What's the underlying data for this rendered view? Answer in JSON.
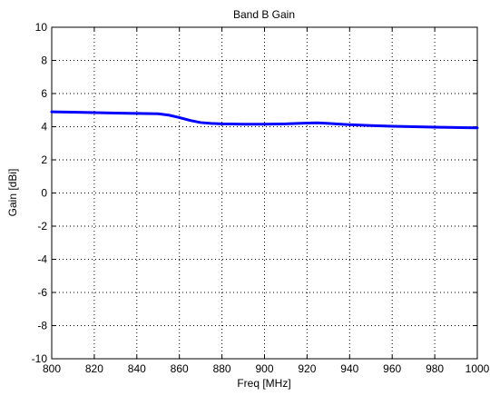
{
  "chart_data": {
    "type": "line",
    "title": "Band B Gain",
    "xlabel": "Freq [MHz]",
    "ylabel": "Gain [dBi]",
    "xlim": [
      800,
      1000
    ],
    "ylim": [
      -10,
      10
    ],
    "xticks": [
      800,
      820,
      840,
      860,
      880,
      900,
      920,
      940,
      960,
      980,
      1000
    ],
    "yticks": [
      -10,
      -8,
      -6,
      -4,
      -2,
      0,
      2,
      4,
      6,
      8,
      10
    ],
    "grid": true,
    "series": [
      {
        "color": "#0000ff",
        "x": [
          800,
          810,
          820,
          830,
          840,
          850,
          855,
          860,
          865,
          870,
          875,
          880,
          890,
          900,
          910,
          920,
          925,
          930,
          940,
          950,
          960,
          970,
          980,
          990,
          1000
        ],
        "y": [
          4.9,
          4.88,
          4.85,
          4.82,
          4.8,
          4.78,
          4.7,
          4.55,
          4.38,
          4.25,
          4.2,
          4.17,
          4.15,
          4.15,
          4.17,
          4.22,
          4.23,
          4.2,
          4.12,
          4.07,
          4.03,
          4.0,
          3.97,
          3.95,
          3.93
        ]
      }
    ]
  }
}
